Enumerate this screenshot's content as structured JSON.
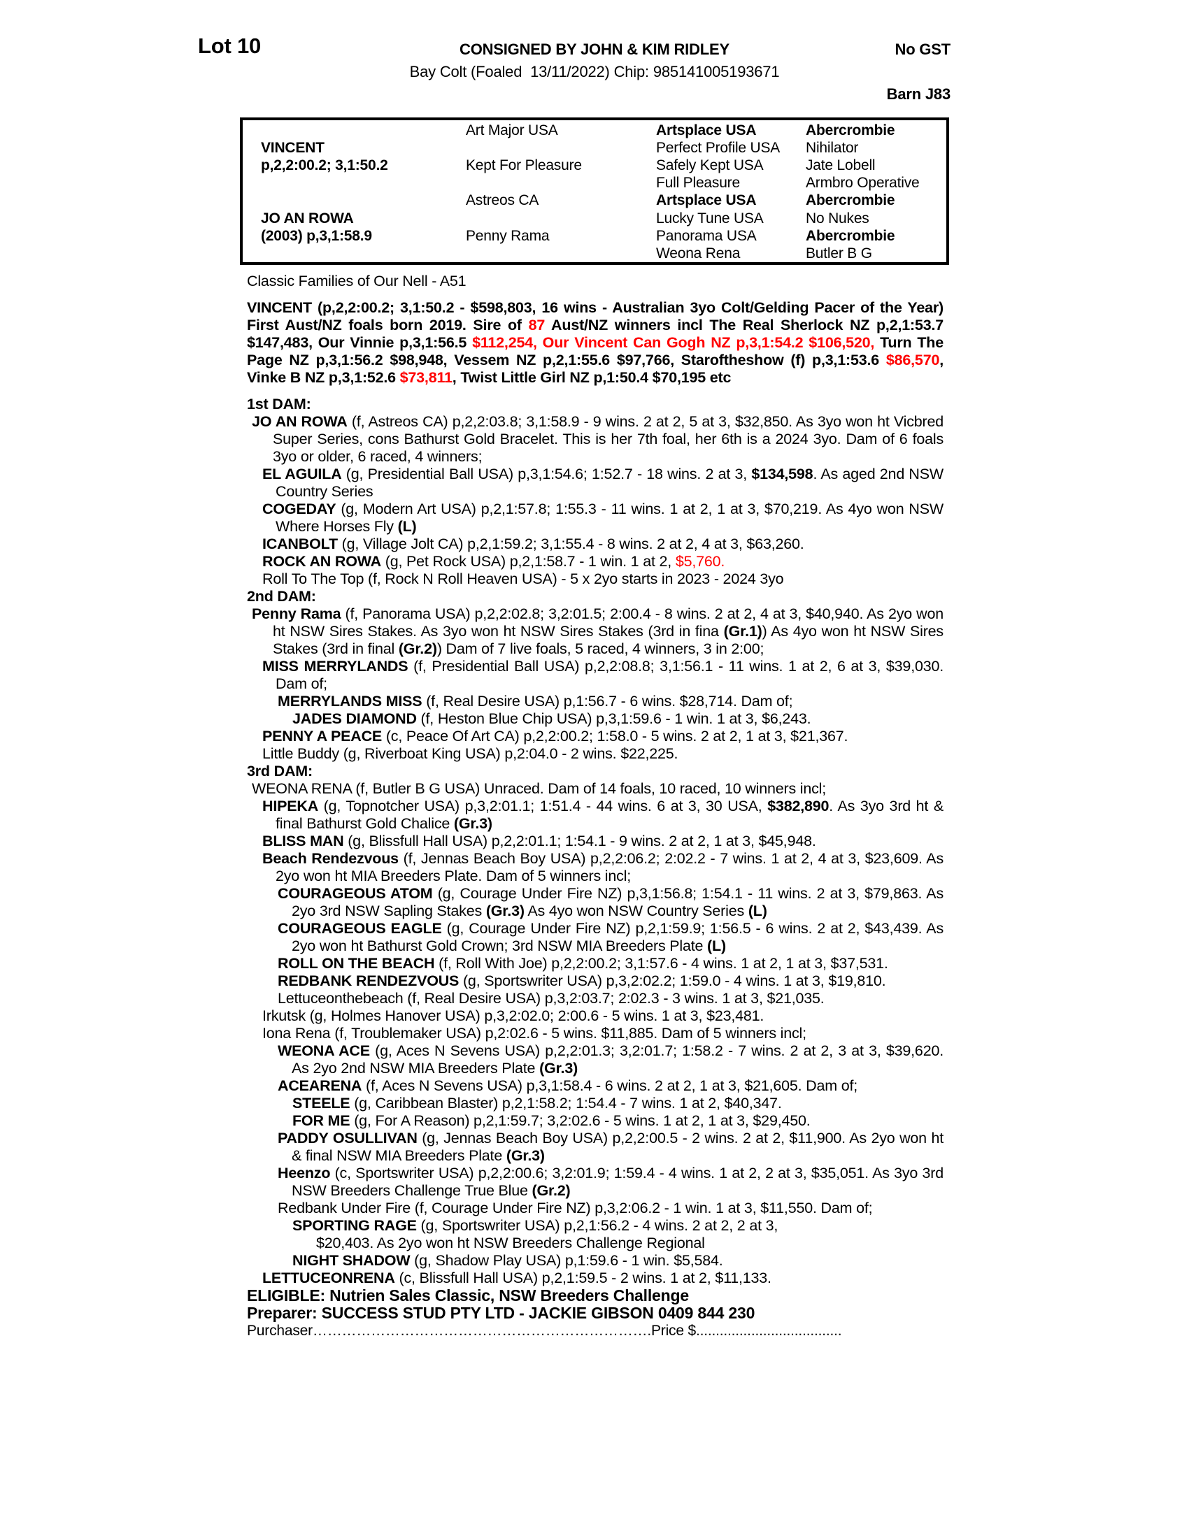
{
  "colors": {
    "accent_red": "#ff0000",
    "text": "#000000",
    "background": "#ffffff"
  },
  "header": {
    "lot": "Lot 10",
    "consignor": "CONSIGNED BY JOHN & KIM RIDLEY",
    "gst": "No GST",
    "foaling": "Bay Colt (Foaled  13/11/2022) Chip: 985141005193671",
    "barn": "Barn J83"
  },
  "pedigree": {
    "cells": [
      {
        "row": 1,
        "col": 2,
        "text": "Art Major USA",
        "bold": false
      },
      {
        "row": 1,
        "col": 3,
        "text": "Artsplace USA",
        "bold": true
      },
      {
        "row": 1,
        "col": 4,
        "text": "Abercrombie",
        "bold": true
      },
      {
        "row": 2,
        "col": 1,
        "text": "VINCENT",
        "bold": true
      },
      {
        "row": 2,
        "col": 3,
        "text": "Perfect Profile USA",
        "bold": false
      },
      {
        "row": 2,
        "col": 4,
        "text": "Nihilator",
        "bold": false
      },
      {
        "row": 3,
        "col": 1,
        "text": "p,2,2:00.2; 3,1:50.2",
        "bold": true
      },
      {
        "row": 3,
        "col": 2,
        "text": "Kept For Pleasure",
        "bold": false
      },
      {
        "row": 3,
        "col": 3,
        "text": "Safely Kept USA",
        "bold": false
      },
      {
        "row": 3,
        "col": 4,
        "text": "Jate Lobell",
        "bold": false
      },
      {
        "row": 4,
        "col": 3,
        "text": "Full Pleasure",
        "bold": false
      },
      {
        "row": 4,
        "col": 4,
        "text": "Armbro Operative",
        "bold": false
      },
      {
        "row": 5,
        "col": 2,
        "text": "Astreos CA",
        "bold": false
      },
      {
        "row": 5,
        "col": 3,
        "text": "Artsplace USA",
        "bold": true
      },
      {
        "row": 5,
        "col": 4,
        "text": "Abercrombie",
        "bold": true
      },
      {
        "row": 6,
        "col": 1,
        "text": "JO AN ROWA",
        "bold": true
      },
      {
        "row": 6,
        "col": 3,
        "text": "Lucky Tune USA",
        "bold": false
      },
      {
        "row": 6,
        "col": 4,
        "text": "No Nukes",
        "bold": false
      },
      {
        "row": 7,
        "col": 1,
        "text": "(2003) p,3,1:58.9",
        "bold": true
      },
      {
        "row": 7,
        "col": 2,
        "text": "Penny Rama",
        "bold": false
      },
      {
        "row": 7,
        "col": 3,
        "text": "Panorama USA",
        "bold": false
      },
      {
        "row": 7,
        "col": 4,
        "text": "Abercrombie",
        "bold": true
      },
      {
        "row": 8,
        "col": 3,
        "text": "Weona Rena",
        "bold": false
      },
      {
        "row": 8,
        "col": 4,
        "text": "Butler B G",
        "bold": false
      }
    ]
  },
  "body": [
    {
      "cls": "",
      "name": "family-line",
      "segments": [
        {
          "t": "Classic Families of Our Nell - A51"
        }
      ]
    },
    {
      "cls": "sire",
      "name": "sire-summary",
      "segments": [
        {
          "t": "VINCENT (p,2,2:00.2; 3,1:50.2 - $598,803, 16 wins - Australian 3yo Colt/Gelding Pacer of the Year) First Aust/NZ foals born 2019. Sire of ",
          "b": true
        },
        {
          "t": "87",
          "b": true,
          "r": true
        },
        {
          "t": " Aust/NZ winners incl The Real Sherlock NZ p,2,1:53.7 $147,483, Our Vinnie p,3,1:56.5 ",
          "b": true
        },
        {
          "t": "$112,254, Our Vincent Can Gogh NZ p,3,1:54.2 $106,520,",
          "b": true,
          "r": true
        },
        {
          "t": " Turn The Page NZ p,3,1:56.2 $98,948, Vessem NZ p,2,1:55.6 $97,766, Staroftheshow (f) p,3,1:53.6 ",
          "b": true
        },
        {
          "t": "$86,570",
          "b": true,
          "r": true
        },
        {
          "t": ", Vinke B NZ p,3,1:52.6 ",
          "b": true
        },
        {
          "t": "$73,811",
          "b": true,
          "r": true
        },
        {
          "t": ", Twist Little Girl NZ p,1:50.4 $70,195 etc",
          "b": true
        }
      ]
    },
    {
      "cls": "h mt",
      "name": "dam-heading-1st",
      "segments": [
        {
          "t": "1st DAM:",
          "b": true
        }
      ]
    },
    {
      "cls": "e1",
      "name": "horse-entry",
      "segments": [
        {
          "t": "JO AN ROWA",
          "b": true
        },
        {
          "t": " (f, Astreos CA) p,2,2:03.8; 3,1:58.9 - 9 wins. 2 at 2, 5 at 3, $32,850. As 3yo won ht Vicbred Super Series, cons Bathurst Gold Bracelet. This is her 7th foal, her 6th is a 2024 3yo. Dam of 6 foals 3yo or older, 6 raced, 4 winners;"
        }
      ]
    },
    {
      "cls": "e2",
      "name": "horse-entry",
      "segments": [
        {
          "t": "EL AGUILA",
          "b": true
        },
        {
          "t": " (g, Presidential Ball USA) p,3,1:54.6; 1:52.7 - 18 wins. 2 at 3, "
        },
        {
          "t": "$134,598",
          "b": true
        },
        {
          "t": ". As aged 2nd NSW Country Series"
        }
      ]
    },
    {
      "cls": "e2",
      "name": "horse-entry",
      "segments": [
        {
          "t": "COGEDAY",
          "b": true
        },
        {
          "t": " (g, Modern Art USA) p,2,1:57.8; 1:55.3 - 11 wins. 1 at 2, 1 at 3, $70,219. As 4yo won NSW Where Horses Fly "
        },
        {
          "t": "(L)",
          "b": true
        }
      ]
    },
    {
      "cls": "e2",
      "name": "horse-entry",
      "segments": [
        {
          "t": "ICANBOLT",
          "b": true
        },
        {
          "t": " (g, Village Jolt CA) p,2,1:59.2; 3,1:55.4 - 8 wins. 2 at 2, 4 at 3, $63,260."
        }
      ]
    },
    {
      "cls": "e2",
      "name": "horse-entry",
      "segments": [
        {
          "t": "ROCK AN ROWA",
          "b": true
        },
        {
          "t": " (g, Pet Rock USA) p,2,1:58.7 - 1 win. 1 at 2, "
        },
        {
          "t": "$5,760.",
          "r": true
        }
      ]
    },
    {
      "cls": "e2",
      "name": "horse-entry",
      "segments": [
        {
          "t": "Roll To The Top (f, Rock N Roll Heaven USA) - 5 x 2yo starts in 2023 - 2024 3yo"
        }
      ]
    },
    {
      "cls": "h",
      "name": "dam-heading-2nd",
      "segments": [
        {
          "t": "2nd DAM:",
          "b": true
        }
      ]
    },
    {
      "cls": "e1",
      "name": "horse-entry",
      "segments": [
        {
          "t": "Penny Rama",
          "b": true
        },
        {
          "t": " (f, Panorama USA) p,2,2:02.8; 3,2:01.5; 2:00.4 - 8 wins. 2 at 2, 4 at 3, $40,940. As 2yo won ht NSW Sires Stakes. As 3yo won ht NSW Sires Stakes (3rd in fina "
        },
        {
          "t": "(Gr.1)",
          "b": true
        },
        {
          "t": ") As 4yo won ht NSW Sires Stakes (3rd in final "
        },
        {
          "t": "(Gr.2)",
          "b": true
        },
        {
          "t": ") Dam of 7 live foals, 5 raced, 4 winners, 3 in 2:00;"
        }
      ]
    },
    {
      "cls": "e2",
      "name": "horse-entry",
      "segments": [
        {
          "t": "MISS MERRYLANDS",
          "b": true
        },
        {
          "t": " (f, Presidential Ball USA) p,2,2:08.8; 3,1:56.1 - 11 wins. 1 at 2, 6 at 3, $39,030. Dam of;"
        }
      ]
    },
    {
      "cls": "e3",
      "name": "horse-entry",
      "segments": [
        {
          "t": "MERRYLANDS MISS",
          "b": true
        },
        {
          "t": " (f, Real Desire USA) p,1:56.7 - 6 wins. $28,714. Dam of;"
        }
      ]
    },
    {
      "cls": "e4",
      "name": "horse-entry",
      "segments": [
        {
          "t": "JADES DIAMOND",
          "b": true
        },
        {
          "t": " (f, Heston Blue Chip USA) p,3,1:59.6 - 1 win. 1 at 3, $6,243."
        }
      ]
    },
    {
      "cls": "e2",
      "name": "horse-entry",
      "segments": [
        {
          "t": "PENNY A PEACE",
          "b": true
        },
        {
          "t": " (c, Peace Of Art CA) p,2,2:00.2; 1:58.0 - 5 wins. 2 at 2, 1 at 3, $21,367."
        }
      ]
    },
    {
      "cls": "e2",
      "name": "horse-entry",
      "segments": [
        {
          "t": "Little Buddy (g, Riverboat King USA) p,2:04.0 - 2 wins. $22,225."
        }
      ]
    },
    {
      "cls": "h",
      "name": "dam-heading-3rd",
      "segments": [
        {
          "t": "3rd DAM:",
          "b": true
        }
      ]
    },
    {
      "cls": "e1",
      "name": "horse-entry",
      "segments": [
        {
          "t": "WEONA RENA (f, Butler B G USA) Unraced. Dam of 14 foals, 10 raced, 10 winners incl;"
        }
      ]
    },
    {
      "cls": "e2",
      "name": "horse-entry",
      "segments": [
        {
          "t": "HIPEKA",
          "b": true
        },
        {
          "t": " (g, Topnotcher USA) p,3,2:01.1; 1:51.4 - 44 wins. 6 at 3, 30 USA, "
        },
        {
          "t": "$382,890",
          "b": true
        },
        {
          "t": ". As 3yo 3rd ht & final Bathurst Gold Chalice "
        },
        {
          "t": "(Gr.3)",
          "b": true
        }
      ]
    },
    {
      "cls": "e2",
      "name": "horse-entry",
      "segments": [
        {
          "t": "BLISS MAN",
          "b": true
        },
        {
          "t": " (g, Blissfull Hall USA) p,2,2:01.1; 1:54.1 - 9 wins. 2 at 2, 1 at 3, $45,948."
        }
      ]
    },
    {
      "cls": "e2",
      "name": "horse-entry",
      "segments": [
        {
          "t": "Beach Rendezvous",
          "b": true
        },
        {
          "t": " (f, Jennas Beach Boy USA) p,2,2:06.2; 2:02.2 - 7 wins. 1 at 2, 4 at 3, $23,609. As 2yo won ht MIA Breeders Plate. Dam of 5 winners incl;"
        }
      ]
    },
    {
      "cls": "e3",
      "name": "horse-entry",
      "segments": [
        {
          "t": "COURAGEOUS ATOM",
          "b": true
        },
        {
          "t": " (g, Courage Under Fire NZ) p,3,1:56.8; 1:54.1 - 11 wins. 2 at 3, $79,863. As 2yo 3rd NSW Sapling Stakes "
        },
        {
          "t": "(Gr.3)",
          "b": true
        },
        {
          "t": " As 4yo won NSW Country Series "
        },
        {
          "t": "(L)",
          "b": true
        }
      ]
    },
    {
      "cls": "e3",
      "name": "horse-entry",
      "segments": [
        {
          "t": "COURAGEOUS EAGLE",
          "b": true
        },
        {
          "t": " (g, Courage Under Fire NZ) p,2,1:59.9; 1:56.5 - 6 wins. 2 at 2, $43,439. As 2yo won ht Bathurst Gold Crown; 3rd NSW MIA Breeders Plate "
        },
        {
          "t": "(L)",
          "b": true
        }
      ]
    },
    {
      "cls": "e3",
      "name": "horse-entry",
      "segments": [
        {
          "t": "ROLL ON THE BEACH",
          "b": true
        },
        {
          "t": " (f, Roll With Joe) p,2,2:00.2; 3,1:57.6 - 4 wins. 1 at 2, 1 at 3, $37,531."
        }
      ]
    },
    {
      "cls": "e3",
      "name": "horse-entry",
      "segments": [
        {
          "t": "REDBANK RENDEZVOUS",
          "b": true
        },
        {
          "t": " (g, Sportswriter USA) p,3,2:02.2; 1:59.0 - 4 wins. 1 at 3, $19,810."
        }
      ]
    },
    {
      "cls": "e3",
      "name": "horse-entry",
      "segments": [
        {
          "t": "Lettuceonthebeach (f, Real Desire USA) p,3,2:03.7; 2:02.3 - 3 wins. 1 at 3, $21,035."
        }
      ]
    },
    {
      "cls": "e2",
      "name": "horse-entry",
      "segments": [
        {
          "t": "Irkutsk (g, Holmes Hanover USA) p,3,2:02.0; 2:00.6 - 5 wins. 1 at 3, $23,481."
        }
      ]
    },
    {
      "cls": "e2",
      "name": "horse-entry",
      "segments": [
        {
          "t": "Iona Rena (f, Troublemaker USA) p,2:02.6 - 5 wins. $11,885. Dam of 5 winners incl;"
        }
      ]
    },
    {
      "cls": "e3",
      "name": "horse-entry",
      "segments": [
        {
          "t": "WEONA ACE",
          "b": true
        },
        {
          "t": " (g, Aces N Sevens USA) p,2,2:01.3; 3,2:01.7; 1:58.2 - 7 wins. 2 at 2, 3 at 3, $39,620. As 2yo 2nd NSW MIA Breeders Plate "
        },
        {
          "t": "(Gr.3)",
          "b": true
        }
      ]
    },
    {
      "cls": "e3",
      "name": "horse-entry",
      "segments": [
        {
          "t": "ACEARENA",
          "b": true
        },
        {
          "t": " (f, Aces N Sevens USA) p,3,1:58.4 - 6 wins. 2 at 2, 1 at 3, $21,605. Dam of;"
        }
      ]
    },
    {
      "cls": "e4",
      "name": "horse-entry",
      "segments": [
        {
          "t": "STEELE",
          "b": true
        },
        {
          "t": " (g, Caribbean Blaster) p,2,1:58.2; 1:54.4 - 7 wins. 1 at 2, $40,347."
        }
      ]
    },
    {
      "cls": "e4",
      "name": "horse-entry",
      "segments": [
        {
          "t": "FOR ME",
          "b": true
        },
        {
          "t": " (g, For A Reason) p,2,1:59.7; 3,2:02.6 - 5 wins. 1 at 2, 1 at 3, $29,450."
        }
      ]
    },
    {
      "cls": "e3",
      "name": "horse-entry",
      "segments": [
        {
          "t": "PADDY OSULLIVAN",
          "b": true
        },
        {
          "t": " (g, Jennas Beach Boy USA) p,2,2:00.5 - 2 wins. 2 at 2, $11,900. As 2yo won ht & final NSW MIA Breeders Plate "
        },
        {
          "t": "(Gr.3)",
          "b": true
        }
      ]
    },
    {
      "cls": "e3",
      "name": "horse-entry",
      "segments": [
        {
          "t": "Heenzo",
          "b": true
        },
        {
          "t": " (c, Sportswriter USA) p,2,2:00.6; 3,2:01.9; 1:59.4 - 4 wins. 1 at 2, 2 at 3, $35,051. As 3yo 3rd NSW Breeders Challenge True Blue "
        },
        {
          "t": "(Gr.2)",
          "b": true
        }
      ]
    },
    {
      "cls": "e3",
      "name": "horse-entry",
      "segments": [
        {
          "t": "Redbank Under Fire (f, Courage Under Fire NZ) p,3,2:06.2 - 1 win. 1 at 3, $11,550. Dam of;"
        }
      ]
    },
    {
      "cls": "e4",
      "name": "horse-entry",
      "segments": [
        {
          "t": "SPORTING RAGE",
          "b": true
        },
        {
          "t": " (g, Sportswriter USA) p,2,1:56.2 - 4 wins. 2 at 2, 2 at 3,"
        }
      ]
    },
    {
      "cls": "e5",
      "name": "horse-entry-continuation",
      "segments": [
        {
          "t": "$20,403. As 2yo won ht NSW Breeders Challenge Regional"
        }
      ]
    },
    {
      "cls": "e4",
      "name": "horse-entry",
      "segments": [
        {
          "t": "NIGHT SHADOW",
          "b": true
        },
        {
          "t": " (g, Shadow Play USA) p,1:59.6 - 1 win. $5,584."
        }
      ]
    },
    {
      "cls": "e2",
      "name": "horse-entry",
      "segments": [
        {
          "t": "LETTUCEONRENA",
          "b": true
        },
        {
          "t": " (c, Blissfull Hall USA) p,2,1:59.5 - 2 wins. 1 at 2, $11,133."
        }
      ]
    }
  ],
  "footer": {
    "eligible": "ELIGIBLE: Nutrien Sales Classic, NSW Breeders Challenge",
    "preparer": "Preparer: SUCCESS STUD PTY LTD - JACKIE GIBSON 0409 844 230",
    "purchaser_label": "Purchaser",
    "purchaser_dots": "…………………………………………………………….",
    "price_label": "Price $",
    "price_dots": "....................................."
  }
}
